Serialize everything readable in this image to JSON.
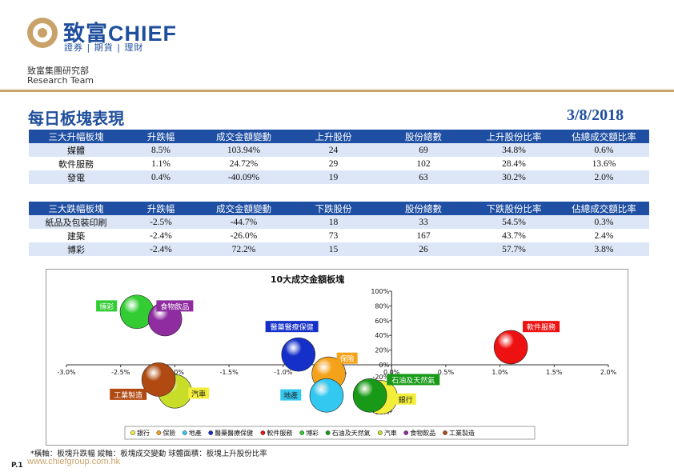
{
  "header": {
    "logo_text": "致富CHIEF",
    "logo_sub": "證券 | 期貨 | 理財",
    "dept_cn": "致富集團研究部",
    "dept_en": "Research Team"
  },
  "page": {
    "title": "每日板塊表現",
    "date": "3/8/2018",
    "website": "www.chiefgroup.com.hk",
    "page_no": "P.1",
    "footnote": "*橫軸：板塊升跌幅    縱軸：板塊成交變動    球體面積：板塊上升股份比率"
  },
  "up_table": {
    "headers": [
      "三大升幅板塊",
      "升跌幅",
      "成交金額變動",
      "上升股份",
      "股份總數",
      "上升股份比率",
      "佔總成交額比率"
    ],
    "rows": [
      [
        "媒體",
        "8.5%",
        "103.94%",
        "24",
        "69",
        "34.8%",
        "0.6%"
      ],
      [
        "軟件服務",
        "1.1%",
        "24.72%",
        "29",
        "102",
        "28.4%",
        "13.6%"
      ],
      [
        "發電",
        "0.4%",
        "-40.09%",
        "19",
        "63",
        "30.2%",
        "2.0%"
      ]
    ]
  },
  "down_table": {
    "headers": [
      "三大跌幅板塊",
      "升跌幅",
      "成交金額變動",
      "下跌股份",
      "股份總數",
      "下跌股份比率",
      "佔總成交額比率"
    ],
    "rows": [
      [
        "紙品及包裝印刷",
        "-2.5%",
        "-44.7%",
        "18",
        "33",
        "54.5%",
        "0.3%"
      ],
      [
        "建築",
        "-2.4%",
        "-26.0%",
        "73",
        "167",
        "43.7%",
        "2.4%"
      ],
      [
        "博彩",
        "-2.4%",
        "72.2%",
        "15",
        "26",
        "57.7%",
        "3.8%"
      ]
    ]
  },
  "chart_data": {
    "type": "scatter",
    "title": "10大成交金額板塊",
    "x_ticks": [
      "-3.0%",
      "-2.5%",
      "-2.0%",
      "-1.5%",
      "-1.0%",
      "-0.5%",
      "0.0%",
      "0.5%",
      "1.0%",
      "1.5%",
      "2.0%"
    ],
    "y_ticks": [
      "100%",
      "80%",
      "60%",
      "40%",
      "20%",
      "0%",
      "-20%",
      "-40%",
      "-60%",
      "-80%"
    ],
    "xlim": [
      -3.0,
      2.0
    ],
    "ylim": [
      -80,
      100
    ],
    "legend_position": "bottom",
    "series": [
      {
        "name": "銀行",
        "x": -0.1,
        "y": -55,
        "color": "#f2ee3a"
      },
      {
        "name": "保險",
        "x": -0.58,
        "y": -15,
        "color": "#f5a21b"
      },
      {
        "name": "地產",
        "x": -0.6,
        "y": -52,
        "color": "#33c8f0"
      },
      {
        "name": "醫藥醫療保健",
        "x": -0.86,
        "y": 14,
        "color": "#1530c8"
      },
      {
        "name": "軟件服務",
        "x": 1.1,
        "y": 24,
        "color": "#ee1111"
      },
      {
        "name": "博彩",
        "x": -2.35,
        "y": 72,
        "color": "#33cc33"
      },
      {
        "name": "石油及天然氣",
        "x": -0.2,
        "y": -52,
        "color": "#189a18"
      },
      {
        "name": "汽車",
        "x": -2.0,
        "y": -45,
        "color": "#c8dc2a"
      },
      {
        "name": "食物飲品",
        "x": -2.09,
        "y": 62,
        "color": "#8e2ca0"
      },
      {
        "name": "工業製造",
        "x": -2.15,
        "y": -25,
        "color": "#b04a12"
      }
    ],
    "labels": [
      {
        "text": "博彩",
        "x": -2.63,
        "y": 80,
        "bg": "#33cc33",
        "fg": "#ffffff"
      },
      {
        "text": "食物飲品",
        "x": -2.0,
        "y": 80,
        "bg": "#8e2ca0",
        "fg": "#ffffff"
      },
      {
        "text": "醫藥醫療保健",
        "x": -0.92,
        "y": 52,
        "bg": "#1530c8",
        "fg": "#ffffff"
      },
      {
        "text": "保險",
        "x": -0.41,
        "y": 9,
        "bg": "#f5a21b",
        "fg": "#ffffff"
      },
      {
        "text": "軟件服務",
        "x": 1.38,
        "y": 52,
        "bg": "#ee1111",
        "fg": "#ffffff"
      },
      {
        "text": "石油及天然氣",
        "x": 0.2,
        "y": -25,
        "bg": "#189a18",
        "fg": "#ffffff"
      },
      {
        "text": "工業製造",
        "x": -2.43,
        "y": -50,
        "bg": "#b04a12",
        "fg": "#ffffff"
      },
      {
        "text": "汽車",
        "x": -1.78,
        "y": -48,
        "bg": "#f2ee3a",
        "fg": "#222222"
      },
      {
        "text": "地產",
        "x": -0.93,
        "y": -51,
        "bg": "#33c8f0",
        "fg": "#222222"
      },
      {
        "text": "銀行",
        "x": 0.13,
        "y": -58,
        "bg": "#f2ee3a",
        "fg": "#222222"
      }
    ]
  }
}
